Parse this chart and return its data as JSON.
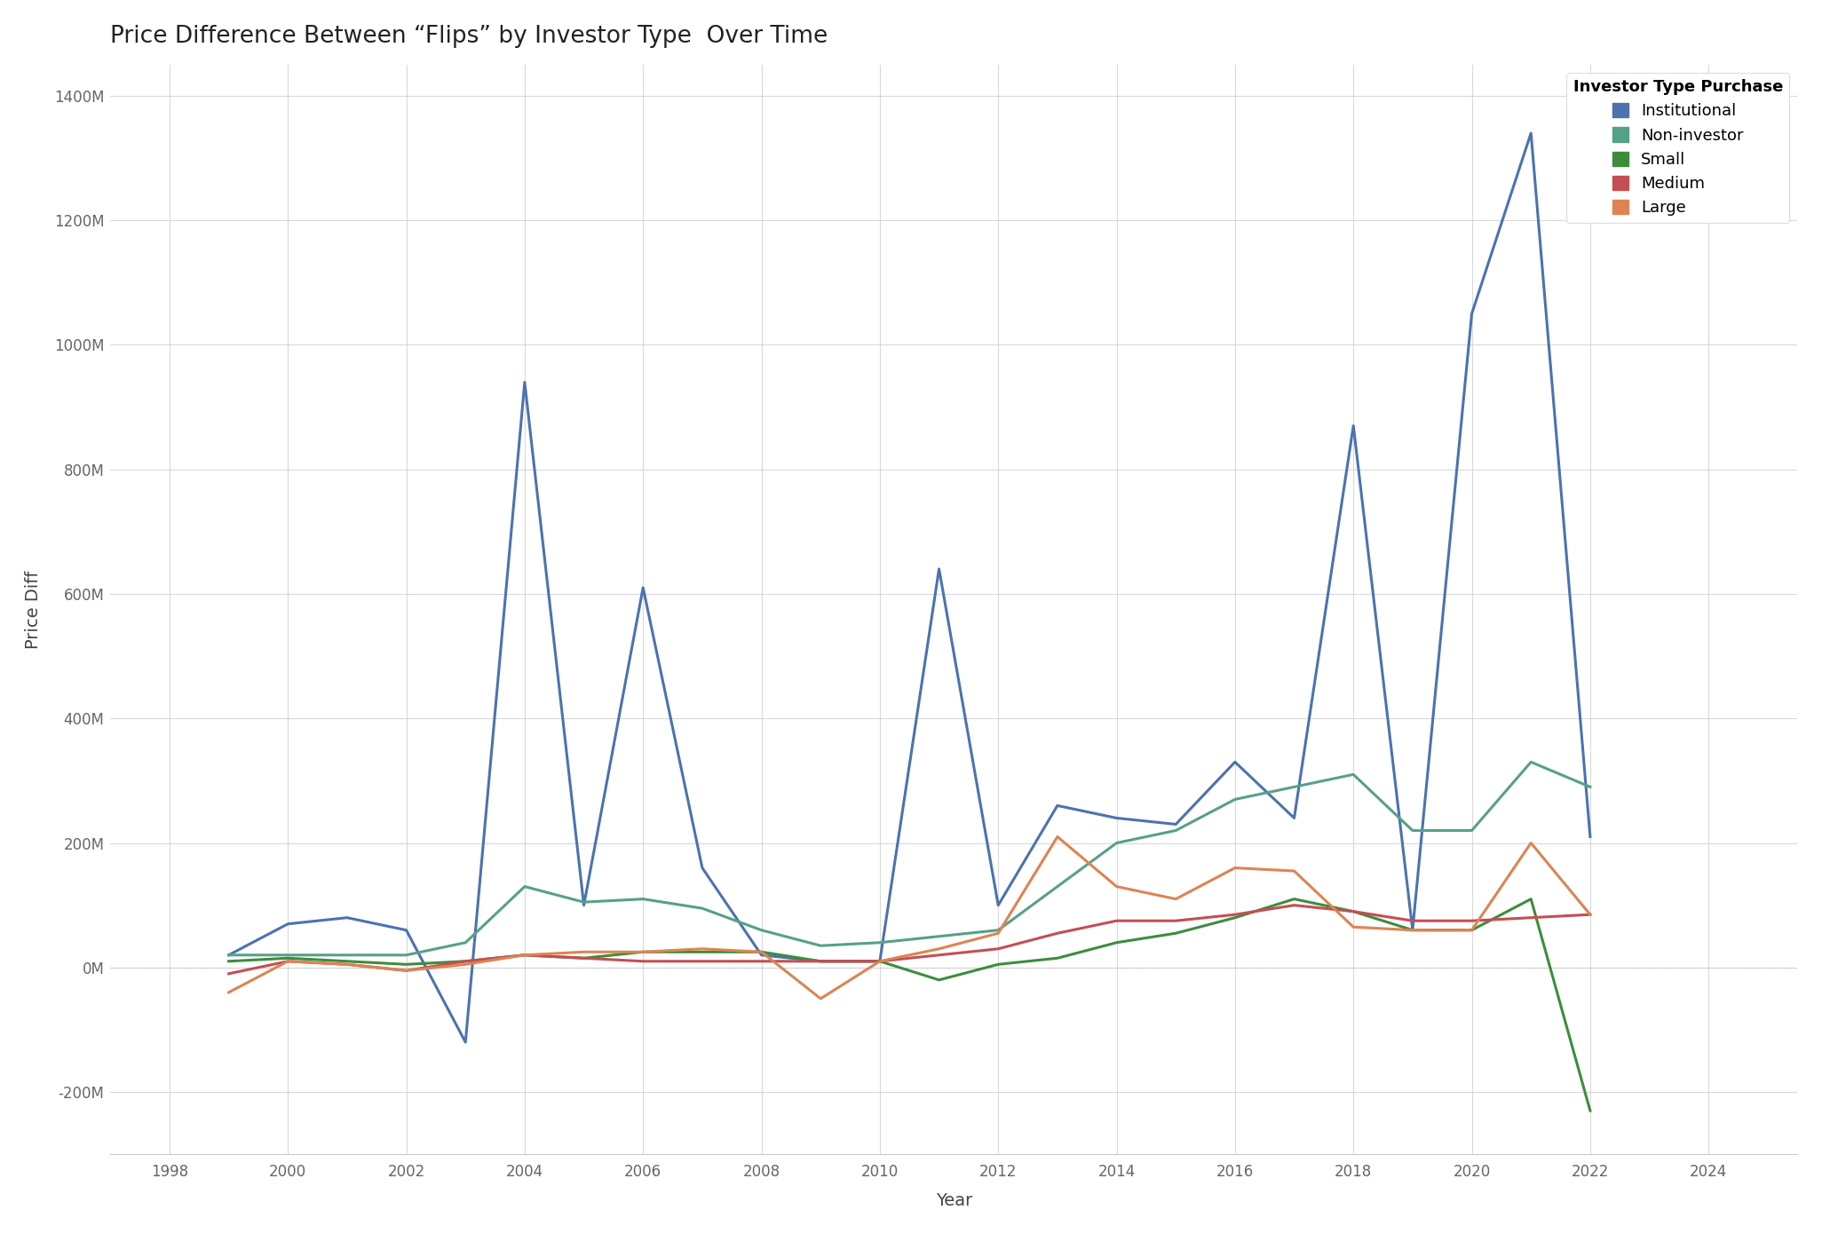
{
  "title": "Price Difference Between “Flips” by Investor Type  Over Time",
  "xlabel": "Year",
  "ylabel": "Price Diff",
  "legend_title": "Investor Type Purchase",
  "background_color": "#ffffff",
  "series": {
    "Institutional": {
      "color": "#4c72b0",
      "years": [
        1999,
        2000,
        2001,
        2002,
        2003,
        2004,
        2005,
        2006,
        2007,
        2008,
        2009,
        2010,
        2011,
        2012,
        2013,
        2014,
        2015,
        2016,
        2017,
        2018,
        2019,
        2020,
        2021,
        2022
      ],
      "values": [
        20000000,
        70000000,
        80000000,
        60000000,
        -120000000,
        940000000,
        100000000,
        610000000,
        160000000,
        20000000,
        10000000,
        10000000,
        640000000,
        100000000,
        260000000,
        240000000,
        230000000,
        330000000,
        240000000,
        870000000,
        60000000,
        1050000000,
        1340000000,
        210000000
      ]
    },
    "Non-investor": {
      "color": "#55a187",
      "years": [
        1999,
        2000,
        2001,
        2002,
        2003,
        2004,
        2005,
        2006,
        2007,
        2008,
        2009,
        2010,
        2011,
        2012,
        2013,
        2014,
        2015,
        2016,
        2017,
        2018,
        2019,
        2020,
        2021,
        2022
      ],
      "values": [
        20000000,
        20000000,
        20000000,
        20000000,
        40000000,
        130000000,
        105000000,
        110000000,
        95000000,
        60000000,
        35000000,
        40000000,
        50000000,
        60000000,
        130000000,
        200000000,
        220000000,
        270000000,
        290000000,
        310000000,
        220000000,
        220000000,
        330000000,
        290000000
      ]
    },
    "Small": {
      "color": "#3d8c3d",
      "years": [
        1999,
        2000,
        2001,
        2002,
        2003,
        2004,
        2005,
        2006,
        2007,
        2008,
        2009,
        2010,
        2011,
        2012,
        2013,
        2014,
        2015,
        2016,
        2017,
        2018,
        2019,
        2020,
        2021,
        2022
      ],
      "values": [
        10000000,
        15000000,
        10000000,
        5000000,
        10000000,
        20000000,
        15000000,
        25000000,
        25000000,
        25000000,
        10000000,
        10000000,
        -20000000,
        5000000,
        15000000,
        40000000,
        55000000,
        80000000,
        110000000,
        90000000,
        60000000,
        60000000,
        110000000,
        -230000000
      ]
    },
    "Medium": {
      "color": "#c44e52",
      "years": [
        1999,
        2000,
        2001,
        2002,
        2003,
        2004,
        2005,
        2006,
        2007,
        2008,
        2009,
        2010,
        2011,
        2012,
        2013,
        2014,
        2015,
        2016,
        2017,
        2018,
        2019,
        2020,
        2021,
        2022
      ],
      "values": [
        -10000000,
        10000000,
        5000000,
        -5000000,
        10000000,
        20000000,
        15000000,
        10000000,
        10000000,
        10000000,
        10000000,
        10000000,
        20000000,
        30000000,
        55000000,
        75000000,
        75000000,
        85000000,
        100000000,
        90000000,
        75000000,
        75000000,
        80000000,
        85000000
      ]
    },
    "Large": {
      "color": "#dd8452",
      "years": [
        1999,
        2000,
        2001,
        2002,
        2003,
        2004,
        2005,
        2006,
        2007,
        2008,
        2009,
        2010,
        2011,
        2012,
        2013,
        2014,
        2015,
        2016,
        2017,
        2018,
        2019,
        2020,
        2021,
        2022
      ],
      "values": [
        -40000000,
        10000000,
        5000000,
        -5000000,
        5000000,
        20000000,
        25000000,
        25000000,
        30000000,
        25000000,
        -50000000,
        10000000,
        30000000,
        55000000,
        210000000,
        130000000,
        110000000,
        160000000,
        155000000,
        65000000,
        60000000,
        60000000,
        200000000,
        85000000
      ]
    }
  },
  "xlim": [
    1997,
    2025.5
  ],
  "ylim": [
    -300000000,
    1450000000
  ],
  "yticks": [
    -200000000,
    0,
    200000000,
    400000000,
    600000000,
    800000000,
    1000000000,
    1200000000,
    1400000000
  ],
  "xticks": [
    1998,
    2000,
    2002,
    2004,
    2006,
    2008,
    2010,
    2012,
    2014,
    2016,
    2018,
    2020,
    2022,
    2024
  ]
}
